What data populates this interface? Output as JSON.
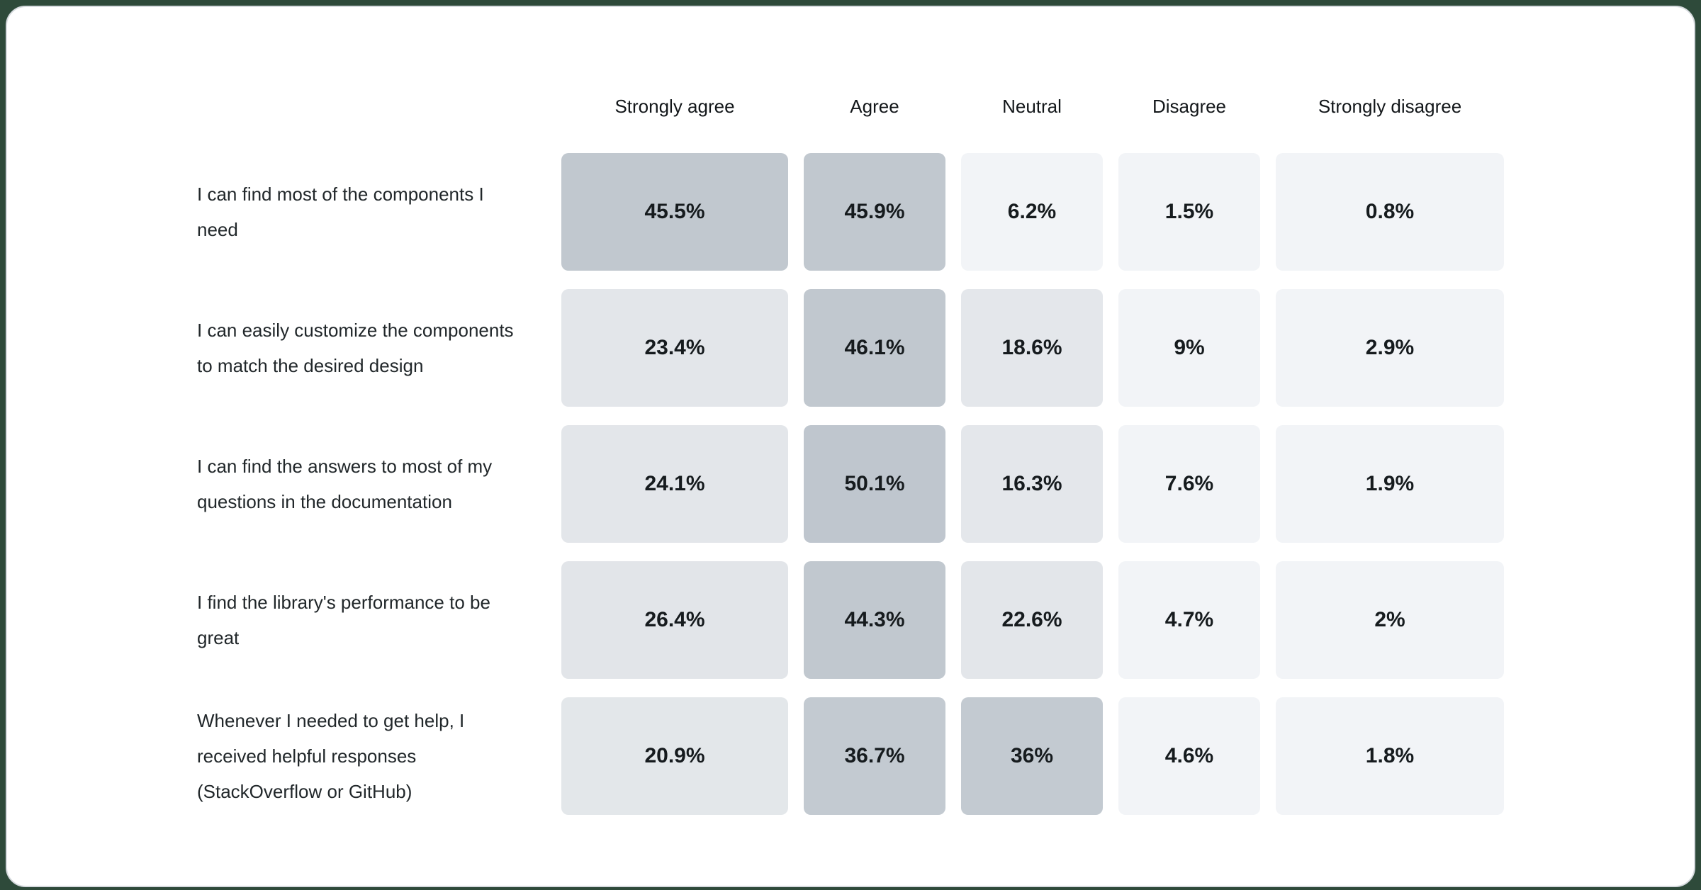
{
  "page": {
    "background_color": "#2e4a3a",
    "card_background": "#ffffff",
    "card_border_color": "#d6dade"
  },
  "chart_data": {
    "type": "heatmap",
    "title": "",
    "legend_position": "none",
    "grid": false,
    "columns": [
      "Strongly agree",
      "Agree",
      "Neutral",
      "Disagree",
      "Strongly disagree"
    ],
    "color_scale": {
      "high": "#c1c8cf",
      "mid": "#e3e6ea",
      "low": "#f2f4f7"
    },
    "rows": [
      {
        "label": "I can find most of the components I need",
        "values": [
          45.5,
          45.9,
          6.2,
          1.5,
          0.8
        ],
        "cells": [
          {
            "label": "45.5%",
            "color": "#c1c8cf"
          },
          {
            "label": "45.9%",
            "color": "#c1c8cf"
          },
          {
            "label": "6.2%",
            "color": "#f2f4f7"
          },
          {
            "label": "1.5%",
            "color": "#f2f4f7"
          },
          {
            "label": "0.8%",
            "color": "#f2f4f7"
          }
        ]
      },
      {
        "label": "I can easily customize the components to match the desired design",
        "values": [
          23.4,
          46.1,
          18.6,
          9,
          2.9
        ],
        "cells": [
          {
            "label": "23.4%",
            "color": "#e3e6ea"
          },
          {
            "label": "46.1%",
            "color": "#c1c8cf"
          },
          {
            "label": "18.6%",
            "color": "#e4e7eb"
          },
          {
            "label": "9%",
            "color": "#f2f4f7"
          },
          {
            "label": "2.9%",
            "color": "#f2f4f7"
          }
        ]
      },
      {
        "label": "I can find the answers to most of my questions in the documentation",
        "values": [
          24.1,
          50.1,
          16.3,
          7.6,
          1.9
        ],
        "cells": [
          {
            "label": "24.1%",
            "color": "#e3e6ea"
          },
          {
            "label": "50.1%",
            "color": "#bfc6ce"
          },
          {
            "label": "16.3%",
            "color": "#e4e7eb"
          },
          {
            "label": "7.6%",
            "color": "#f2f4f7"
          },
          {
            "label": "1.9%",
            "color": "#f2f4f7"
          }
        ]
      },
      {
        "label": "I find the library's performance to be great",
        "values": [
          26.4,
          44.3,
          22.6,
          4.7,
          2
        ],
        "cells": [
          {
            "label": "26.4%",
            "color": "#e2e5e9"
          },
          {
            "label": "44.3%",
            "color": "#c1c8cf"
          },
          {
            "label": "22.6%",
            "color": "#e3e6ea"
          },
          {
            "label": "4.7%",
            "color": "#f2f4f7"
          },
          {
            "label": "2%",
            "color": "#f2f4f7"
          }
        ]
      },
      {
        "label": "Whenever I needed to get help, I received helpful responses (StackOverflow or GitHub)",
        "values": [
          20.9,
          36.7,
          36,
          4.6,
          1.8
        ],
        "cells": [
          {
            "label": "20.9%",
            "color": "#e3e7ea"
          },
          {
            "label": "36.7%",
            "color": "#c3cad1"
          },
          {
            "label": "36%",
            "color": "#c3cad1"
          },
          {
            "label": "4.6%",
            "color": "#f2f4f7"
          },
          {
            "label": "1.8%",
            "color": "#f2f4f7"
          }
        ]
      }
    ]
  }
}
